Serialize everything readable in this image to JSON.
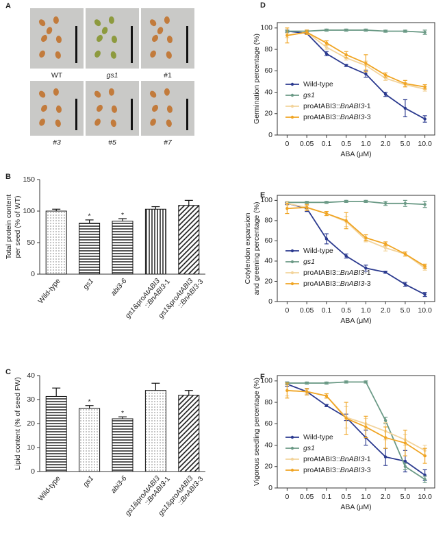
{
  "figure_a": {
    "panel": "A",
    "labels": [
      "WT",
      "gs1",
      "#1",
      "#3",
      "#5",
      "#7"
    ],
    "label_italic": [
      false,
      true,
      false,
      true,
      true,
      true
    ],
    "seed_colors": [
      "#c27b3c",
      "#8d9a3e",
      "#c27b3c",
      "#c27b3c",
      "#c27b3c",
      "#c27b3c"
    ]
  },
  "chart_data": [
    {
      "type": "bar",
      "panel": "B",
      "ylabel": [
        "Total protein content",
        "per seed (% of WT)"
      ],
      "categories": [
        "Wild-type",
        "gs1",
        "abi3-6",
        "gs1&proAtABI3::BnABI3-1",
        "gs1&proAtABI3::BnABI3-3"
      ],
      "label_italic": [
        false,
        true,
        true,
        true,
        true
      ],
      "values": [
        100,
        81,
        84,
        103,
        109
      ],
      "errors": [
        3,
        5,
        4,
        4,
        8
      ],
      "significance": [
        null,
        "*",
        "*",
        null,
        null
      ],
      "patterns": [
        "dots",
        "hlines",
        "hlines",
        "vlines",
        "diag"
      ],
      "ylim": [
        0,
        150
      ],
      "yticks": [
        0,
        50,
        100,
        150
      ]
    },
    {
      "type": "bar",
      "panel": "C",
      "ylabel": [
        "Lipid content (% of seed FW)"
      ],
      "categories": [
        "Wild-type",
        "gs1",
        "abi3-6",
        "gs1&proAtABI3::BnABI3-1",
        "gs1&proAtABI3::BnABI3-3"
      ],
      "label_italic": [
        false,
        true,
        true,
        true,
        true
      ],
      "values": [
        31.3,
        26.3,
        22,
        33.8,
        31.8
      ],
      "errors": [
        3.5,
        1.2,
        0.8,
        3,
        2
      ],
      "significance": [
        null,
        "*",
        "*",
        null,
        null
      ],
      "patterns": [
        "hlines",
        "dots",
        "hlines",
        "dots",
        "diag"
      ],
      "ylim": [
        0,
        40
      ],
      "yticks": [
        0,
        10,
        20,
        30,
        40
      ]
    },
    {
      "type": "line",
      "panel": "D",
      "ylabel": [
        "Germination percentage (%)"
      ],
      "xlabel": "ABA (μM)",
      "categories": [
        "0",
        "0.05",
        "0.1",
        "0.5",
        "1.0",
        "2.0",
        "5.0",
        "10.0"
      ],
      "ylim": [
        0,
        105
      ],
      "yticks": [
        0,
        20,
        40,
        60,
        80,
        100
      ],
      "legend": "lower left",
      "series": [
        {
          "name": "Wild-type",
          "color": "#2b3a8f",
          "values": [
            97,
            95,
            76,
            65,
            57,
            38,
            25,
            15
          ],
          "errors": [
            1,
            1,
            2,
            1,
            3,
            2,
            8,
            3
          ]
        },
        {
          "name": "gs1",
          "italic": true,
          "color": "#6b9a86",
          "values": [
            97,
            97,
            98,
            98,
            98,
            97,
            97,
            96
          ],
          "errors": [
            1,
            1,
            1,
            1,
            1,
            1,
            1,
            2
          ]
        },
        {
          "name": "proAtABI3::BnABI3-1",
          "color": "#f3d49c",
          "values": [
            93,
            96,
            82,
            72,
            65,
            53,
            47,
            43
          ],
          "errors": [
            2,
            2,
            2,
            2,
            4,
            2,
            2,
            2
          ]
        },
        {
          "name": "proAtABI3::BnABI3-3",
          "color": "#f0a524",
          "values": [
            93,
            96,
            86,
            75,
            67,
            56,
            48,
            45
          ],
          "errors": [
            7,
            2,
            2,
            3,
            8,
            2,
            3,
            2
          ]
        }
      ]
    },
    {
      "type": "line",
      "panel": "E",
      "ylabel": [
        "Cotylendon expansion",
        "and greening percentage (%)"
      ],
      "xlabel": "ABA (μM)",
      "categories": [
        "0",
        "0.05",
        "0.1",
        "0.5",
        "1.0",
        "2.0",
        "5.0",
        "10.0"
      ],
      "ylim": [
        0,
        105
      ],
      "yticks": [
        0,
        20,
        40,
        60,
        80,
        100
      ],
      "legend": "lower left",
      "series": [
        {
          "name": "Wild-type",
          "color": "#2b3a8f",
          "values": [
            97,
            92,
            62,
            45,
            33,
            29,
            17,
            7
          ],
          "errors": [
            1,
            3,
            5,
            2,
            3,
            1,
            2,
            2
          ]
        },
        {
          "name": "gs1",
          "italic": true,
          "color": "#6b9a86",
          "values": [
            98,
            98,
            98,
            99,
            99,
            97,
            97,
            96
          ],
          "errors": [
            1,
            1,
            1,
            1,
            1,
            2,
            3,
            3
          ]
        },
        {
          "name": "proAtABI3::BnABI3-1",
          "color": "#f3d49c",
          "values": [
            97,
            93,
            87,
            79,
            61,
            53,
            47,
            33
          ],
          "errors": [
            2,
            2,
            2,
            5,
            2,
            3,
            2,
            2
          ]
        },
        {
          "name": "proAtABI3::BnABI3-3",
          "color": "#f0a524",
          "values": [
            92,
            93,
            87,
            80,
            63,
            57,
            47,
            35
          ],
          "errors": [
            5,
            3,
            2,
            8,
            3,
            2,
            2,
            2
          ]
        }
      ]
    },
    {
      "type": "line",
      "panel": "F",
      "ylabel": [
        "Vigorous seedling percentage (%)"
      ],
      "xlabel": "ABA (μM)",
      "categories": [
        "0",
        "0.05",
        "0.1",
        "0.5",
        "1.0",
        "2.0",
        "5.0",
        "10.0"
      ],
      "ylim": [
        0,
        105
      ],
      "yticks": [
        0,
        20,
        40,
        60,
        80,
        100
      ],
      "legend": "lower left",
      "series": [
        {
          "name": "Wild-type",
          "color": "#2b3a8f",
          "values": [
            97,
            90,
            77,
            66,
            47,
            29,
            25,
            12
          ],
          "errors": [
            2,
            3,
            1,
            3,
            7,
            8,
            10,
            5
          ]
        },
        {
          "name": "gs1",
          "italic": true,
          "color": "#6b9a86",
          "values": [
            98,
            98,
            98,
            99,
            99,
            63,
            20,
            8
          ],
          "errors": [
            1,
            1,
            1,
            1,
            1,
            3,
            3,
            3
          ]
        },
        {
          "name": "proAtABI3::BnABI3-1",
          "color": "#f3d49c",
          "values": [
            91,
            90,
            86,
            66,
            60,
            53,
            45,
            35
          ],
          "errors": [
            5,
            2,
            2,
            10,
            5,
            8,
            5,
            5
          ]
        },
        {
          "name": "proAtABI3::BnABI3-3",
          "color": "#f0a524",
          "values": [
            91,
            90,
            86,
            65,
            57,
            47,
            42,
            30
          ],
          "errors": [
            7,
            3,
            2,
            15,
            10,
            10,
            12,
            7
          ]
        }
      ]
    }
  ]
}
